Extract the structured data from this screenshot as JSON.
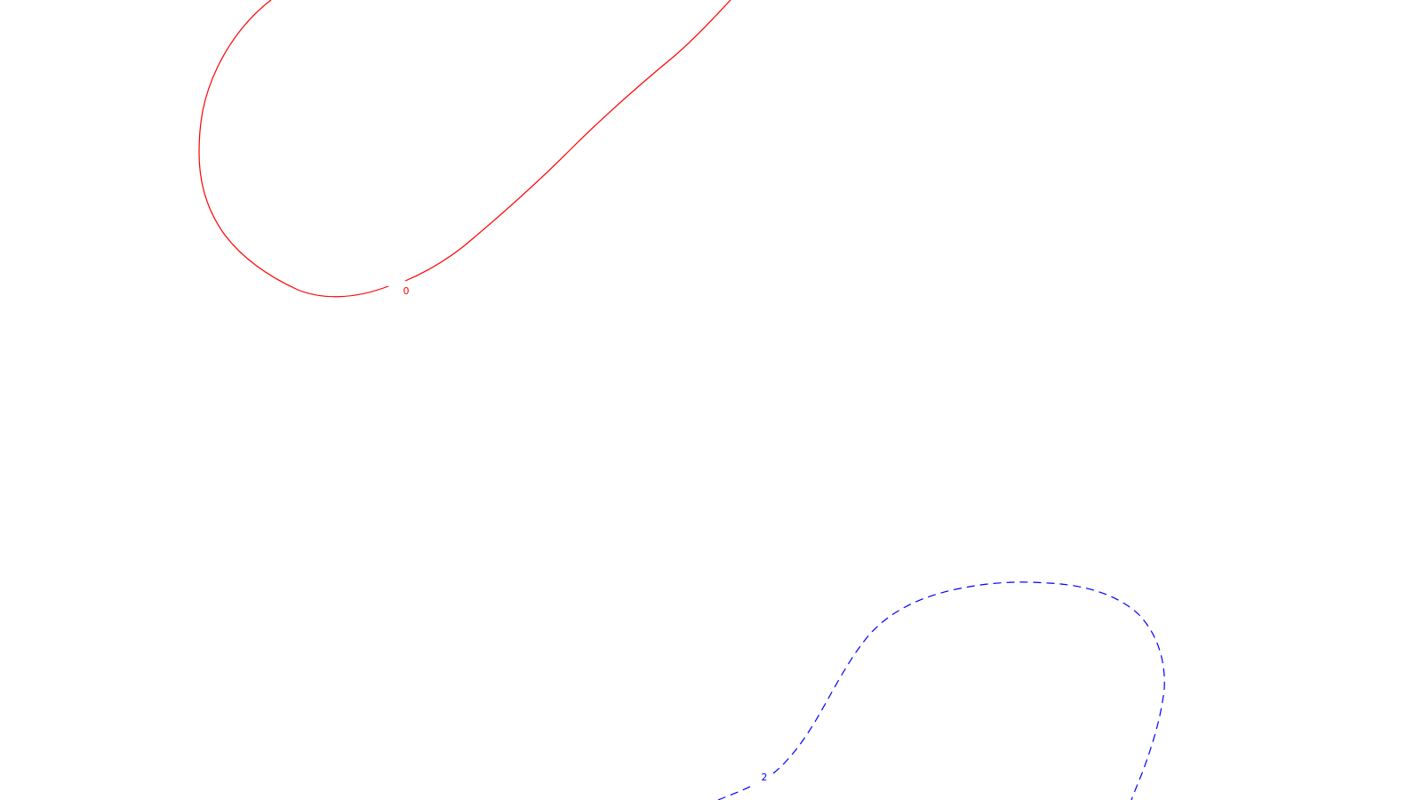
{
  "contours": [
    {
      "label": "0",
      "color": "#ff0000",
      "line_style": "solid"
    },
    {
      "label": "2",
      "color": "#0000ff",
      "line_style": "dashed"
    }
  ]
}
